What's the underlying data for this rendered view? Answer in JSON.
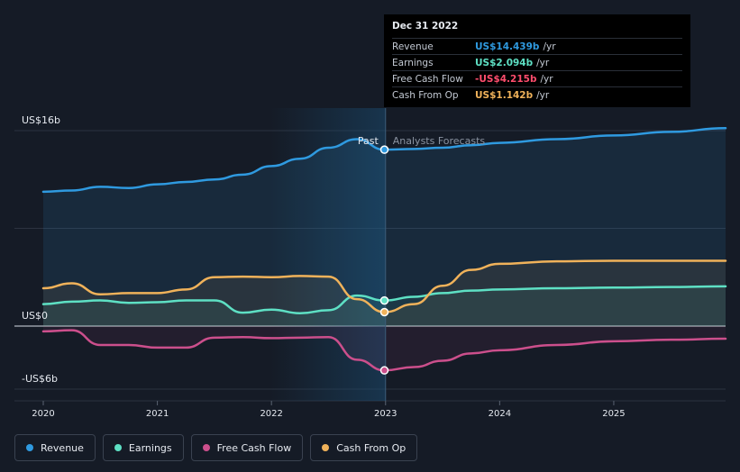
{
  "tooltip": {
    "date": "Dec 31 2022",
    "rows": [
      {
        "label": "Revenue",
        "value": "US$14.439b",
        "unit": "/yr",
        "color": "#2f9ae0"
      },
      {
        "label": "Earnings",
        "value": "US$2.094b",
        "unit": "/yr",
        "color": "#5ee0c4"
      },
      {
        "label": "Free Cash Flow",
        "value": "-US$4.215b",
        "unit": "/yr",
        "color": "#ff4d6d"
      },
      {
        "label": "Cash From Op",
        "value": "US$1.142b",
        "unit": "/yr",
        "color": "#f0b25a"
      }
    ]
  },
  "chart_data": {
    "type": "line",
    "ylim": [
      -6,
      16
    ],
    "y_tick_labels": [
      "US$16b",
      "US$0",
      "-US$6b"
    ],
    "y_tick_values": [
      16,
      0,
      -6
    ],
    "xlim": [
      2020,
      2025.98
    ],
    "x_ticks": [
      2020,
      2021,
      2022,
      2023,
      2024,
      2025
    ],
    "past_label": "Past",
    "forecast_label": "Analysts Forecasts",
    "divider_x": 2023,
    "highlight_x": 2022.99,
    "series": [
      {
        "name": "Revenue",
        "color": "#2f9ae0",
        "points": [
          [
            2020,
            11.0
          ],
          [
            2020.25,
            11.1
          ],
          [
            2020.5,
            11.4
          ],
          [
            2020.75,
            11.3
          ],
          [
            2021,
            11.6
          ],
          [
            2021.25,
            11.8
          ],
          [
            2021.5,
            12.0
          ],
          [
            2021.75,
            12.4
          ],
          [
            2022,
            13.1
          ],
          [
            2022.25,
            13.7
          ],
          [
            2022.5,
            14.6
          ],
          [
            2022.75,
            15.3
          ],
          [
            2022.99,
            14.439
          ],
          [
            2023.25,
            14.5
          ],
          [
            2023.5,
            14.6
          ],
          [
            2023.75,
            14.8
          ],
          [
            2024,
            15.0
          ],
          [
            2024.5,
            15.3
          ],
          [
            2025,
            15.6
          ],
          [
            2025.5,
            15.9
          ],
          [
            2025.98,
            16.2
          ]
        ]
      },
      {
        "name": "Earnings",
        "color": "#5ee0c4",
        "points": [
          [
            2020,
            1.8
          ],
          [
            2020.25,
            2.0
          ],
          [
            2020.5,
            2.1
          ],
          [
            2020.75,
            1.9
          ],
          [
            2021,
            1.95
          ],
          [
            2021.25,
            2.1
          ],
          [
            2021.5,
            2.1
          ],
          [
            2021.75,
            1.1
          ],
          [
            2022,
            1.35
          ],
          [
            2022.25,
            1.05
          ],
          [
            2022.5,
            1.3
          ],
          [
            2022.75,
            2.5
          ],
          [
            2022.99,
            2.094
          ],
          [
            2023.25,
            2.4
          ],
          [
            2023.5,
            2.7
          ],
          [
            2023.75,
            2.9
          ],
          [
            2024,
            3.0
          ],
          [
            2024.5,
            3.1
          ],
          [
            2025,
            3.15
          ],
          [
            2025.5,
            3.2
          ],
          [
            2025.98,
            3.25
          ]
        ]
      },
      {
        "name": "Free Cash Flow",
        "color": "#cc4f8c",
        "points": [
          [
            2020,
            -0.5
          ],
          [
            2020.25,
            -0.4
          ],
          [
            2020.5,
            -1.8
          ],
          [
            2020.75,
            -1.8
          ],
          [
            2021,
            -2.05
          ],
          [
            2021.25,
            -2.05
          ],
          [
            2021.5,
            -1.1
          ],
          [
            2021.75,
            -1.05
          ],
          [
            2022,
            -1.15
          ],
          [
            2022.25,
            -1.1
          ],
          [
            2022.5,
            -1.05
          ],
          [
            2022.75,
            -3.2
          ],
          [
            2022.99,
            -4.215
          ],
          [
            2023.25,
            -3.9
          ],
          [
            2023.5,
            -3.3
          ],
          [
            2023.75,
            -2.6
          ],
          [
            2024,
            -2.3
          ],
          [
            2024.5,
            -1.8
          ],
          [
            2025,
            -1.45
          ],
          [
            2025.5,
            -1.3
          ],
          [
            2025.98,
            -1.2
          ]
        ]
      },
      {
        "name": "Cash From Op",
        "color": "#f0b25a",
        "points": [
          [
            2020,
            3.1
          ],
          [
            2020.25,
            3.5
          ],
          [
            2020.5,
            2.6
          ],
          [
            2020.75,
            2.7
          ],
          [
            2021,
            2.7
          ],
          [
            2021.25,
            3.0
          ],
          [
            2021.5,
            4.0
          ],
          [
            2021.75,
            4.05
          ],
          [
            2022,
            4.0
          ],
          [
            2022.25,
            4.1
          ],
          [
            2022.5,
            4.05
          ],
          [
            2022.75,
            2.2
          ],
          [
            2022.99,
            1.142
          ],
          [
            2023.25,
            1.8
          ],
          [
            2023.5,
            3.3
          ],
          [
            2023.75,
            4.6
          ],
          [
            2024,
            5.1
          ],
          [
            2024.5,
            5.3
          ],
          [
            2025,
            5.35
          ],
          [
            2025.5,
            5.35
          ],
          [
            2025.98,
            5.35
          ]
        ]
      }
    ]
  },
  "legend": [
    {
      "label": "Revenue",
      "color": "#2f9ae0"
    },
    {
      "label": "Earnings",
      "color": "#5ee0c4"
    },
    {
      "label": "Free Cash Flow",
      "color": "#cc4f8c"
    },
    {
      "label": "Cash From Op",
      "color": "#f0b25a"
    }
  ]
}
